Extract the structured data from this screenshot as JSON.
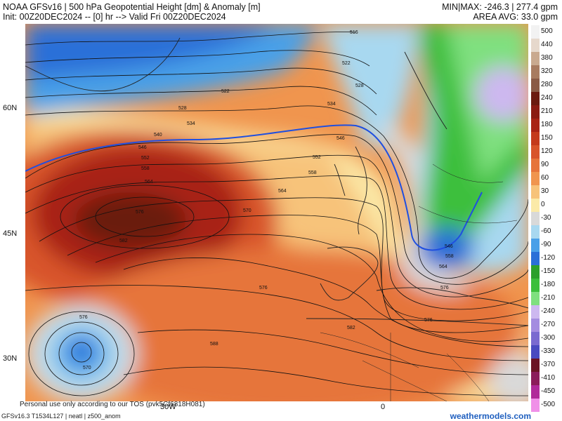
{
  "header": {
    "title": "NOAA GFSv16 | 500 hPa Geopotential Height [dm] & Anomaly [m]",
    "init": "Init: 00Z20DEC2024 -- [0] hr --> Valid Fri 00Z20DEC2024",
    "minmax": "MIN|MAX: -246.3 | 277.4 gpm",
    "area_avg": "AREA AVG: 33.0 gpm"
  },
  "axes": {
    "lat_labels": [
      "60N",
      "45N",
      "30N"
    ],
    "lon_labels": [
      "30W",
      "0"
    ]
  },
  "colorbar": {
    "labels": [
      "500",
      "440",
      "380",
      "320",
      "280",
      "240",
      "210",
      "180",
      "150",
      "120",
      "90",
      "60",
      "30",
      "0",
      "-30",
      "-60",
      "-90",
      "-120",
      "-150",
      "-180",
      "-210",
      "-240",
      "-270",
      "-300",
      "-330",
      "-370",
      "-410",
      "-450",
      "-500"
    ],
    "colors": [
      "#f2f2f2",
      "#e6d8cc",
      "#c9a98f",
      "#a87b60",
      "#8a5a45",
      "#6b1a0f",
      "#8b1b12",
      "#a82315",
      "#c43a1c",
      "#d8542a",
      "#e6743a",
      "#f0954e",
      "#f7c37a",
      "#fbeaa8",
      "#d9d9d9",
      "#a8d8f0",
      "#4aa0e8",
      "#2a6fd8",
      "#2ca02c",
      "#3cbf3c",
      "#7fe07f",
      "#cdb8f0",
      "#a48ce0",
      "#7a6ad0",
      "#4a4ac0",
      "#6b1424",
      "#8b1c5a",
      "#b02a9a",
      "#f090e8"
    ]
  },
  "contour_labels": [
    "516",
    "522",
    "522",
    "528",
    "528",
    "534",
    "534",
    "540",
    "546",
    "552",
    "558",
    "564",
    "564",
    "570",
    "576",
    "582",
    "576",
    "576",
    "588",
    "576",
    "570",
    "546",
    "552",
    "558",
    "546",
    "558",
    "564",
    "576",
    "582"
  ],
  "footer": {
    "personal": "Personal use only according to our TOS (pvk5Cf6818H081)",
    "left": "GFSv16.3 T1534L127 | neatl | z500_anom",
    "right": "weathermodels.com"
  }
}
